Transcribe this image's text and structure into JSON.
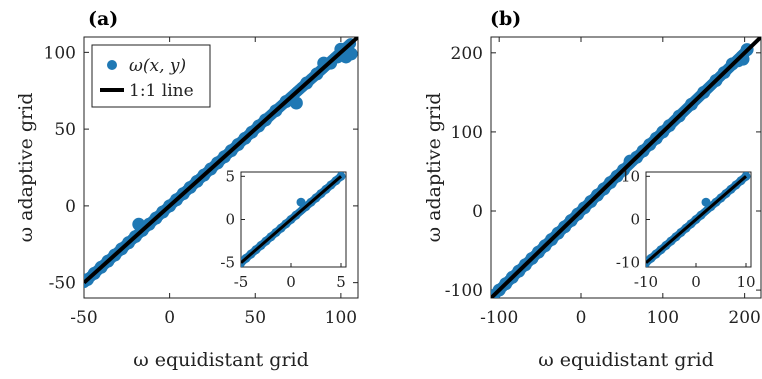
{
  "chart_data": [
    {
      "type": "scatter",
      "panel_label": "(a)",
      "xlabel": "ω  equidistant grid",
      "ylabel": "ω  adaptive grid",
      "xlim": [
        -50,
        110
      ],
      "ylim": [
        -60,
        110
      ],
      "xticks": [
        "-50",
        "0",
        "50",
        "100"
      ],
      "yticks": [
        "-50",
        "0",
        "50",
        "100"
      ],
      "legend": {
        "position": "top-left",
        "entries": [
          "ω(x, y)",
          "1:1 line"
        ]
      },
      "series": [
        {
          "name": "ω(x, y)",
          "kind": "points",
          "color": "#1f78b4",
          "x": [
            -48,
            -44,
            -40,
            -36,
            -32,
            -28,
            -24,
            -20,
            -18,
            -16,
            -12,
            -8,
            -4,
            0,
            4,
            8,
            12,
            16,
            20,
            24,
            28,
            32,
            36,
            40,
            44,
            48,
            52,
            56,
            62,
            68,
            74,
            80,
            86,
            90,
            94,
            98,
            100,
            103,
            106
          ],
          "y": [
            -48,
            -44,
            -40,
            -36,
            -32,
            -28,
            -24,
            -20,
            -12,
            -16,
            -12,
            -8,
            -4,
            0,
            4,
            8,
            12,
            16,
            20,
            24,
            28,
            32,
            36,
            40,
            44,
            48,
            52,
            56,
            62,
            68,
            67,
            80,
            86,
            93,
            93,
            97,
            102,
            97,
            99
          ]
        },
        {
          "name": "1:1 line",
          "kind": "line",
          "color": "#000000",
          "x": [
            -50,
            110
          ],
          "y": [
            -50,
            110
          ]
        }
      ],
      "inset": {
        "xlim": [
          -5,
          5.5
        ],
        "ylim": [
          -5.5,
          5.5
        ],
        "xticks": [
          "-5",
          "0",
          "5"
        ],
        "yticks": [
          "-5",
          "0",
          "5"
        ],
        "x": [
          -5,
          -4.5,
          -4,
          -3.5,
          -3,
          -2.5,
          -2,
          -1.5,
          -1,
          -0.5,
          0,
          0.5,
          1,
          1.5,
          2,
          2.5,
          3,
          3.5,
          4,
          4.5,
          5
        ],
        "y": [
          -5,
          -4.5,
          -4,
          -3.5,
          -3,
          -2.5,
          -2,
          -1.5,
          -1,
          -0.5,
          0,
          0.5,
          2,
          1.5,
          2,
          2.5,
          3,
          3.5,
          4,
          4.5,
          5
        ]
      }
    },
    {
      "type": "scatter",
      "panel_label": "(b)",
      "xlabel": "ω  equidistant grid",
      "ylabel": "ω  adaptive grid",
      "xlim": [
        -110,
        220
      ],
      "ylim": [
        -110,
        220
      ],
      "xticks": [
        "-100",
        "0",
        "100",
        "200"
      ],
      "yticks": [
        "-100",
        "0",
        "100",
        "200"
      ],
      "series": [
        {
          "name": "ω(x, y)",
          "kind": "points",
          "color": "#1f78b4",
          "x": [
            -100,
            -92,
            -84,
            -76,
            -68,
            -60,
            -52,
            -44,
            -36,
            -28,
            -20,
            -12,
            -4,
            4,
            12,
            20,
            28,
            36,
            44,
            52,
            60,
            68,
            76,
            84,
            92,
            100,
            108,
            120,
            135,
            150,
            165,
            175,
            185,
            192,
            198,
            203
          ],
          "y": [
            -100,
            -92,
            -84,
            -76,
            -68,
            -60,
            -52,
            -44,
            -36,
            -28,
            -20,
            -12,
            -4,
            4,
            12,
            20,
            28,
            36,
            44,
            52,
            63,
            68,
            76,
            84,
            92,
            100,
            108,
            120,
            135,
            150,
            165,
            175,
            186,
            190,
            192,
            204
          ]
        },
        {
          "name": "1:1 line",
          "kind": "line",
          "color": "#000000",
          "x": [
            -110,
            220
          ],
          "y": [
            -110,
            220
          ]
        }
      ],
      "inset": {
        "xlim": [
          -10,
          11
        ],
        "ylim": [
          -11,
          11
        ],
        "xticks": [
          "-10",
          "0",
          "10"
        ],
        "yticks": [
          "-10",
          "0",
          "10"
        ],
        "x": [
          -10,
          -9,
          -8,
          -7,
          -6,
          -5,
          -4,
          -3,
          -2,
          -1,
          0,
          1,
          2,
          3,
          4,
          5,
          6,
          7,
          8,
          9,
          10
        ],
        "y": [
          -10,
          -9,
          -8,
          -7,
          -6,
          -5,
          -4,
          -3,
          -2,
          -1,
          0,
          1,
          4,
          3,
          4,
          5,
          6,
          7,
          8,
          9,
          10
        ]
      }
    }
  ]
}
